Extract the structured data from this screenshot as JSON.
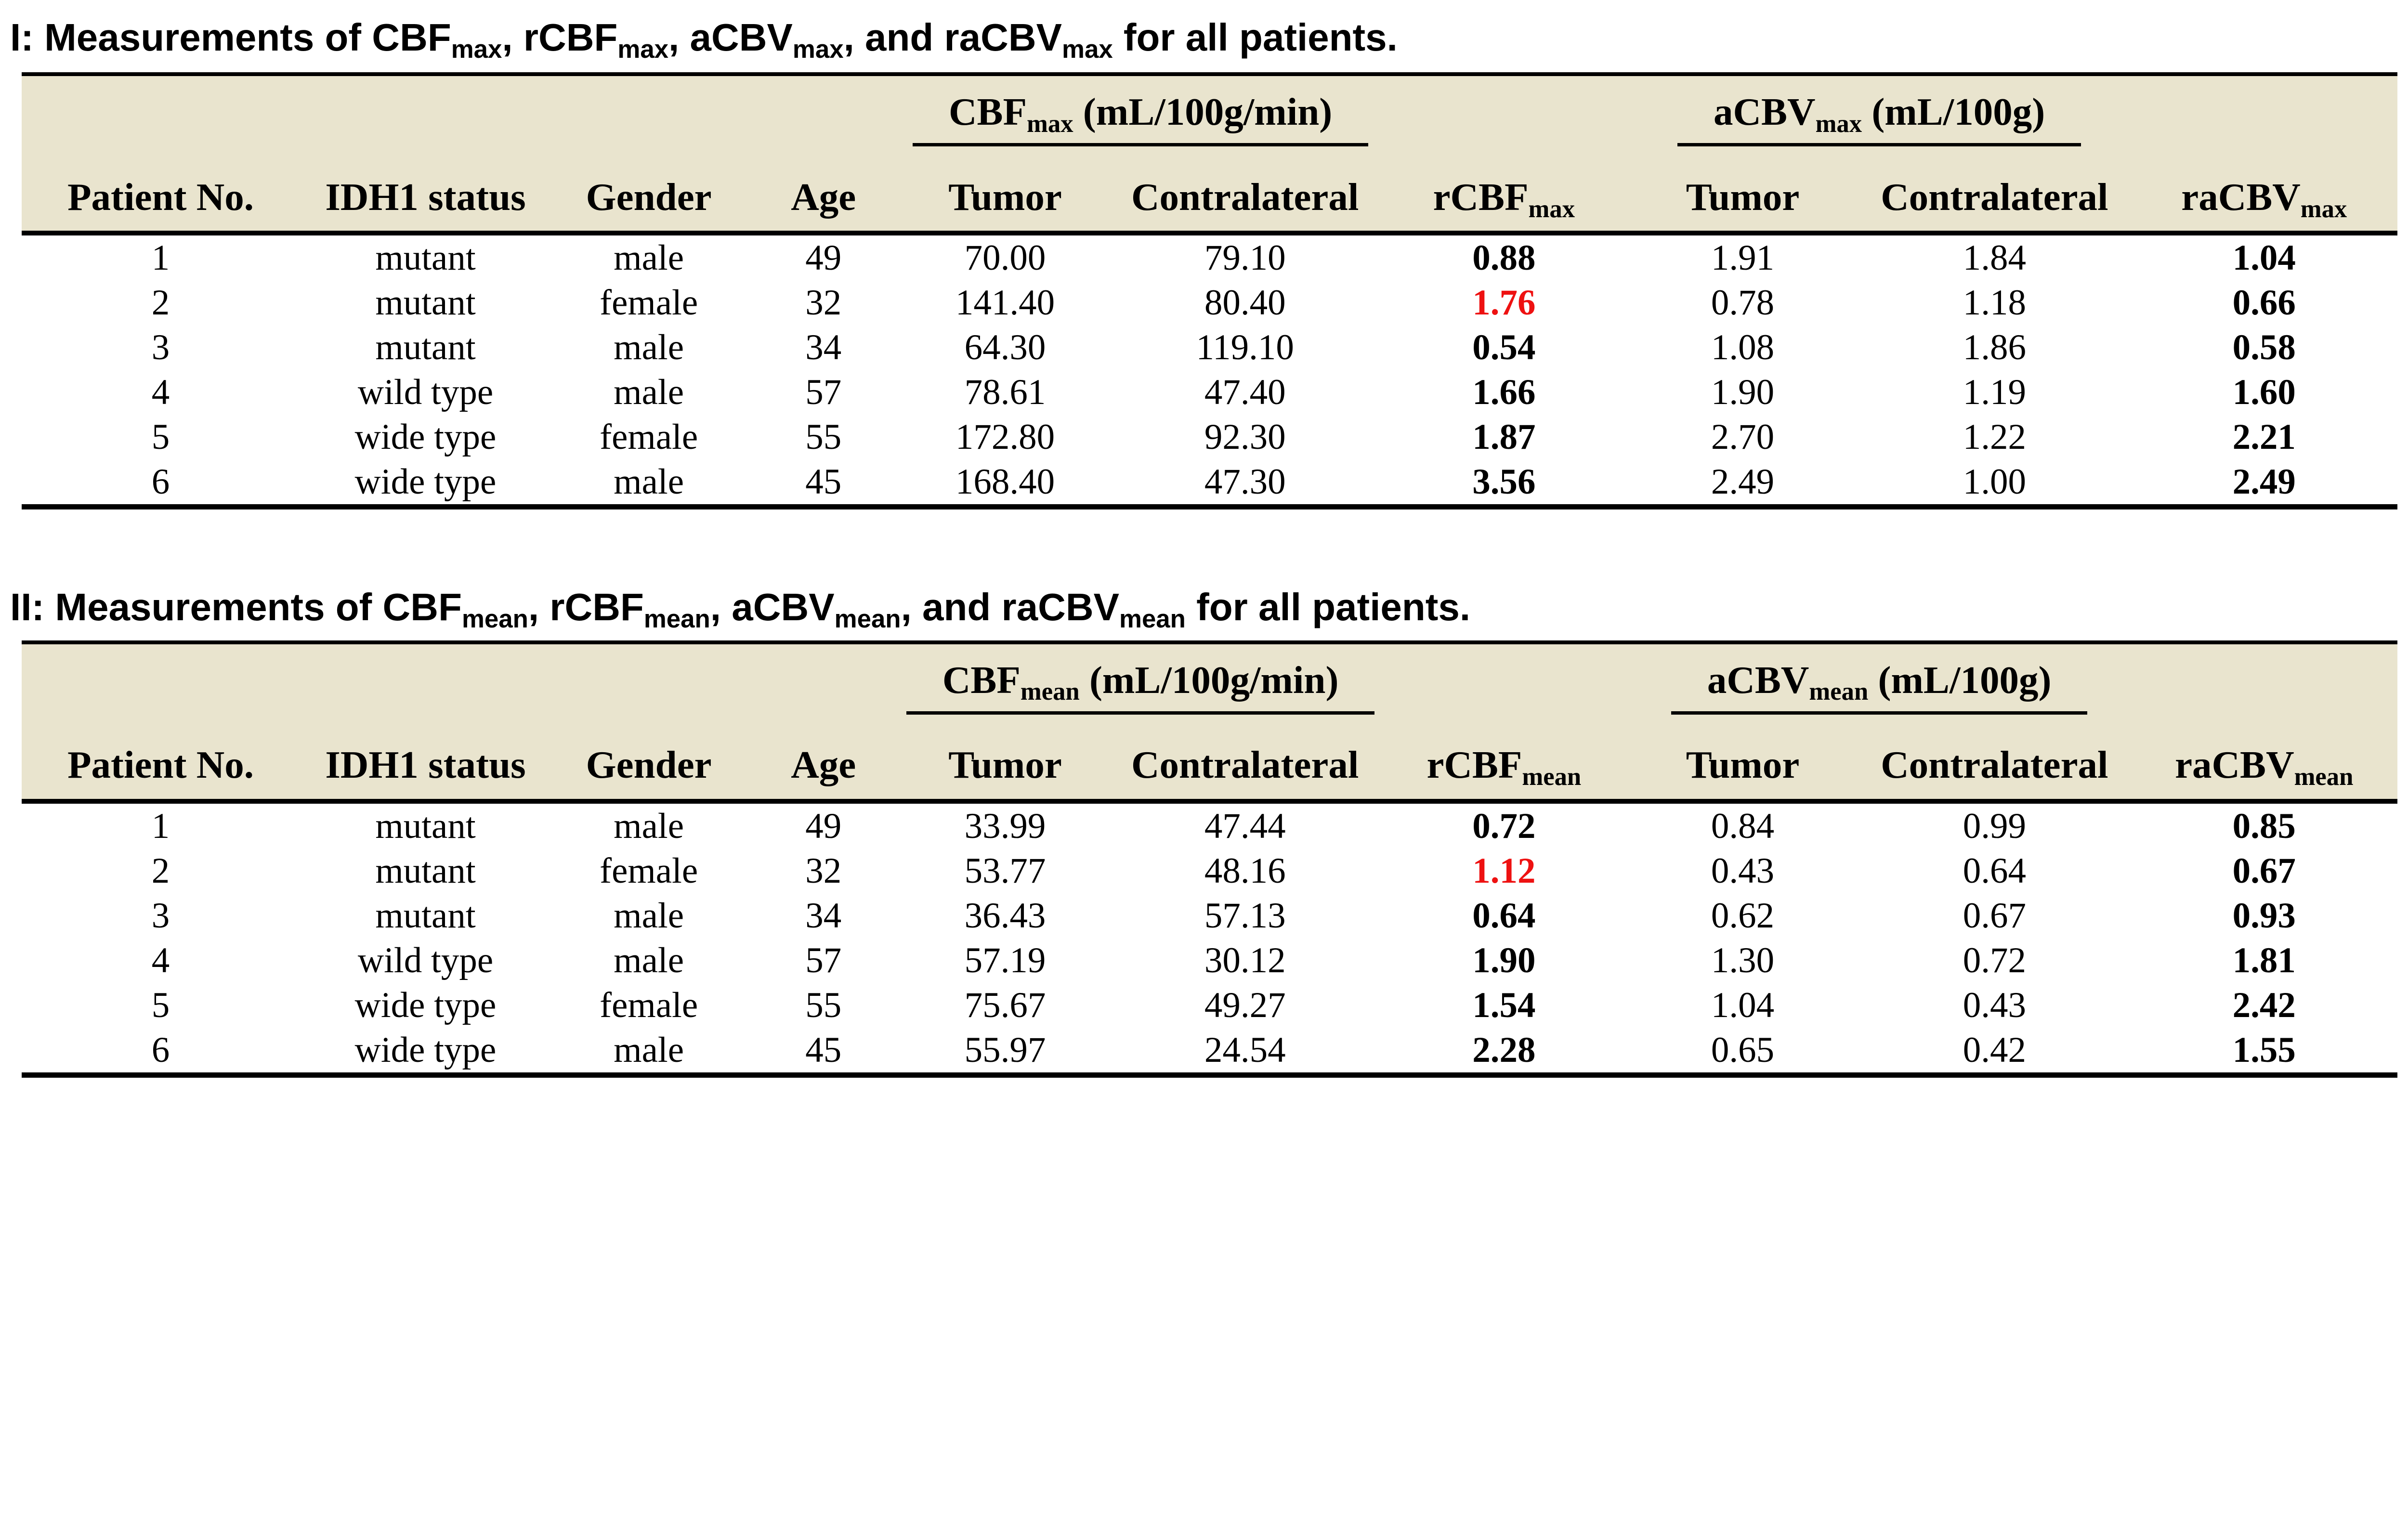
{
  "colors": {
    "page_bg": "#ffffff",
    "header_bg": "#e9e4ce",
    "text": "#000000",
    "highlight_red": "#ee1111"
  },
  "tables": [
    {
      "title_runs": [
        {
          "t": "I: Measurements of CBF"
        },
        {
          "t": "max",
          "sub": true
        },
        {
          "t": ", rCBF"
        },
        {
          "t": "max",
          "sub": true
        },
        {
          "t": ", aCBV"
        },
        {
          "t": "max",
          "sub": true
        },
        {
          "t": ", and raCBV"
        },
        {
          "t": "max",
          "sub": true
        },
        {
          "t": " for all patients."
        }
      ],
      "group_headers": [
        {
          "runs": [
            {
              "t": "CBF"
            },
            {
              "t": "max",
              "sub": true
            },
            {
              "t": " (mL/100g/min)"
            }
          ]
        },
        {
          "runs": [
            {
              "t": "aCBV"
            },
            {
              "t": "max",
              "sub": true
            },
            {
              "t": " (mL/100g)"
            }
          ]
        }
      ],
      "column_headers": [
        {
          "runs": [
            {
              "t": "Patient No."
            }
          ]
        },
        {
          "runs": [
            {
              "t": "IDH1 status"
            }
          ]
        },
        {
          "runs": [
            {
              "t": "Gender"
            }
          ]
        },
        {
          "runs": [
            {
              "t": "Age"
            }
          ]
        },
        {
          "runs": [
            {
              "t": "Tumor"
            }
          ]
        },
        {
          "runs": [
            {
              "t": "Contralateral"
            }
          ]
        },
        {
          "runs": [
            {
              "t": "rCBF"
            },
            {
              "t": "max",
              "sub": true
            }
          ]
        },
        {
          "runs": [
            {
              "t": "Tumor"
            }
          ]
        },
        {
          "runs": [
            {
              "t": "Contralateral"
            }
          ]
        },
        {
          "runs": [
            {
              "t": "raCBV"
            },
            {
              "t": "max",
              "sub": true
            }
          ]
        }
      ],
      "rows": [
        {
          "cells": [
            "1",
            "mutant",
            "male",
            "49",
            "70.00",
            "79.10",
            "0.88",
            "1.91",
            "1.84",
            "1.04"
          ],
          "rcbf_highlight": false
        },
        {
          "cells": [
            "2",
            "mutant",
            "female",
            "32",
            "141.40",
            "80.40",
            "1.76",
            "0.78",
            "1.18",
            "0.66"
          ],
          "rcbf_highlight": true
        },
        {
          "cells": [
            "3",
            "mutant",
            "male",
            "34",
            "64.30",
            "119.10",
            "0.54",
            "1.08",
            "1.86",
            "0.58"
          ],
          "rcbf_highlight": false
        },
        {
          "cells": [
            "4",
            "wild type",
            "male",
            "57",
            "78.61",
            "47.40",
            "1.66",
            "1.90",
            "1.19",
            "1.60"
          ],
          "rcbf_highlight": false
        },
        {
          "cells": [
            "5",
            "wide type",
            "female",
            "55",
            "172.80",
            "92.30",
            "1.87",
            "2.70",
            "1.22",
            "2.21"
          ],
          "rcbf_highlight": false
        },
        {
          "cells": [
            "6",
            "wide type",
            "male",
            "45",
            "168.40",
            "47.30",
            "3.56",
            "2.49",
            "1.00",
            "2.49"
          ],
          "rcbf_highlight": false
        }
      ]
    },
    {
      "title_runs": [
        {
          "t": "II: Measurements of CBF"
        },
        {
          "t": "mean",
          "sub": true
        },
        {
          "t": ", rCBF"
        },
        {
          "t": "mean",
          "sub": true
        },
        {
          "t": ", aCBV"
        },
        {
          "t": "mean",
          "sub": true
        },
        {
          "t": ", and raCBV"
        },
        {
          "t": "mean",
          "sub": true
        },
        {
          "t": " for all patients."
        }
      ],
      "group_headers": [
        {
          "runs": [
            {
              "t": "CBF"
            },
            {
              "t": "mean",
              "sub": true
            },
            {
              "t": " (mL/100g/min)"
            }
          ]
        },
        {
          "runs": [
            {
              "t": "aCBV"
            },
            {
              "t": "mean",
              "sub": true
            },
            {
              "t": " (mL/100g)"
            }
          ]
        }
      ],
      "column_headers": [
        {
          "runs": [
            {
              "t": "Patient No."
            }
          ]
        },
        {
          "runs": [
            {
              "t": "IDH1 status"
            }
          ]
        },
        {
          "runs": [
            {
              "t": "Gender"
            }
          ]
        },
        {
          "runs": [
            {
              "t": "Age"
            }
          ]
        },
        {
          "runs": [
            {
              "t": "Tumor"
            }
          ]
        },
        {
          "runs": [
            {
              "t": "Contralateral"
            }
          ]
        },
        {
          "runs": [
            {
              "t": "rCBF"
            },
            {
              "t": "mean",
              "sub": true
            }
          ]
        },
        {
          "runs": [
            {
              "t": "Tumor"
            }
          ]
        },
        {
          "runs": [
            {
              "t": "Contralateral"
            }
          ]
        },
        {
          "runs": [
            {
              "t": "raCBV"
            },
            {
              "t": "mean",
              "sub": true
            }
          ]
        }
      ],
      "rows": [
        {
          "cells": [
            "1",
            "mutant",
            "male",
            "49",
            "33.99",
            "47.44",
            "0.72",
            "0.84",
            "0.99",
            "0.85"
          ],
          "rcbf_highlight": false
        },
        {
          "cells": [
            "2",
            "mutant",
            "female",
            "32",
            "53.77",
            "48.16",
            "1.12",
            "0.43",
            "0.64",
            "0.67"
          ],
          "rcbf_highlight": true
        },
        {
          "cells": [
            "3",
            "mutant",
            "male",
            "34",
            "36.43",
            "57.13",
            "0.64",
            "0.62",
            "0.67",
            "0.93"
          ],
          "rcbf_highlight": false
        },
        {
          "cells": [
            "4",
            "wild type",
            "male",
            "57",
            "57.19",
            "30.12",
            "1.90",
            "1.30",
            "0.72",
            "1.81"
          ],
          "rcbf_highlight": false
        },
        {
          "cells": [
            "5",
            "wide type",
            "female",
            "55",
            "75.67",
            "49.27",
            "1.54",
            "1.04",
            "0.43",
            "2.42"
          ],
          "rcbf_highlight": false
        },
        {
          "cells": [
            "6",
            "wide type",
            "male",
            "45",
            "55.97",
            "24.54",
            "2.28",
            "0.65",
            "0.42",
            "1.55"
          ],
          "rcbf_highlight": false
        }
      ]
    }
  ]
}
